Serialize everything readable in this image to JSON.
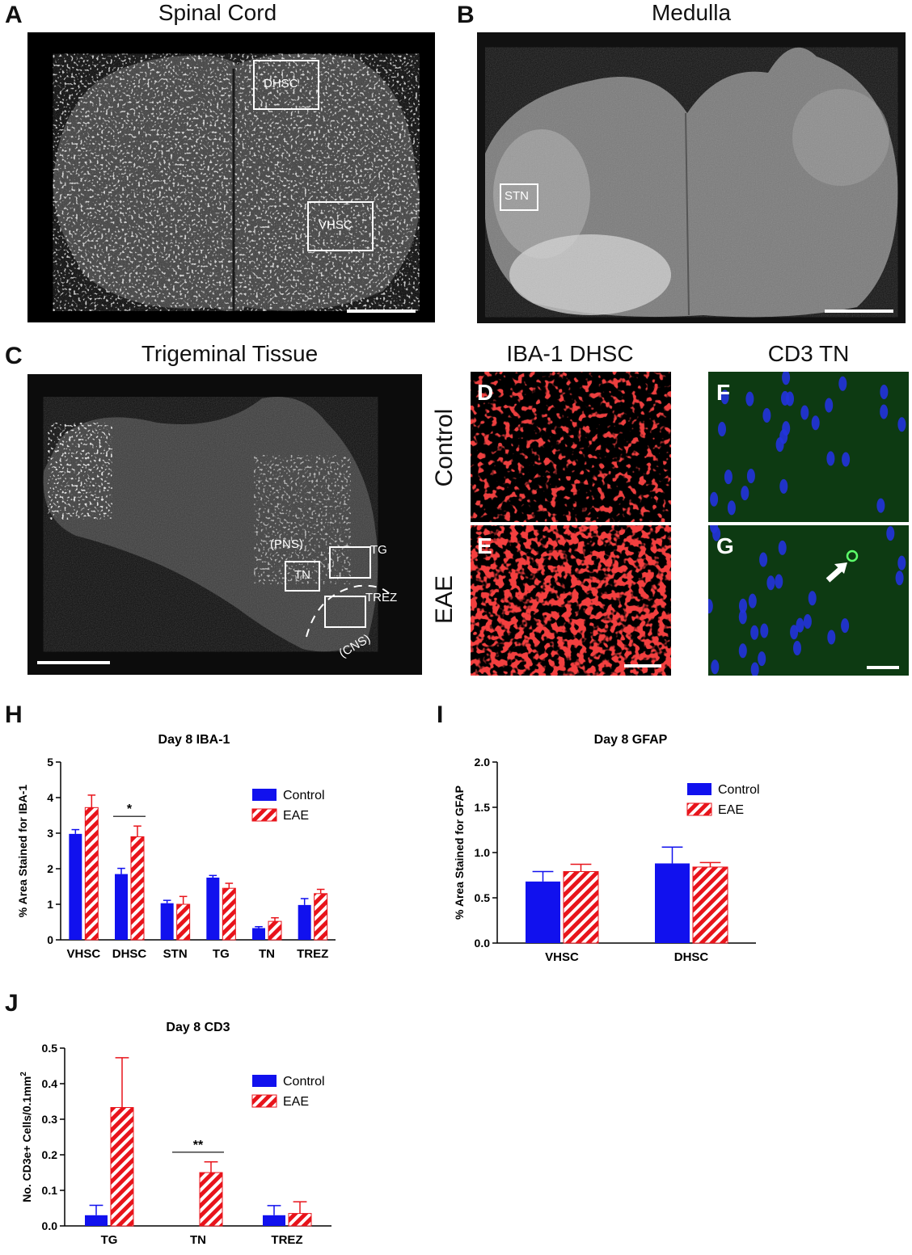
{
  "panels": {
    "A": {
      "letter": "A",
      "title": "Spinal Cord",
      "boxes": [
        "DHSC",
        "VHSC"
      ]
    },
    "B": {
      "letter": "B",
      "title": "Medulla",
      "boxes": [
        "STN"
      ]
    },
    "C": {
      "letter": "C",
      "title": "Trigeminal Tissue",
      "boxes": [
        "TN",
        "TG",
        "TREZ"
      ],
      "regions": [
        "(PNS)",
        "(CNS)"
      ]
    },
    "DE": {
      "title": "IBA-1 DHSC",
      "top_letter": "D",
      "bottom_letter": "E",
      "row_top": "Control",
      "row_bottom": "EAE"
    },
    "FG": {
      "title": "CD3 TN",
      "top_letter": "F",
      "bottom_letter": "G"
    }
  },
  "colors": {
    "control": "#1111ee",
    "eae": "#e8141b",
    "iba1_stain": "#d01010",
    "cd3_bg": "#0d3a12",
    "nuclei": "#2233dd"
  },
  "chart_data": [
    {
      "panel": "H",
      "type": "bar",
      "title": "Day 8 IBA-1",
      "xlabel": "",
      "ylabel": "% Area Stained for IBA-1",
      "ylim": [
        0,
        5
      ],
      "yticks": [
        "0",
        "1",
        "2",
        "3",
        "4",
        "5"
      ],
      "categories": [
        "VHSC",
        "DHSC",
        "STN",
        "TG",
        "TN",
        "TREZ"
      ],
      "series": [
        {
          "name": "Control",
          "values": [
            2.98,
            1.85,
            1.03,
            1.75,
            0.33,
            0.98
          ],
          "errors": [
            0.12,
            0.16,
            0.08,
            0.06,
            0.04,
            0.18
          ]
        },
        {
          "name": "EAE",
          "values": [
            3.72,
            2.9,
            1.0,
            1.45,
            0.52,
            1.3
          ],
          "errors": [
            0.35,
            0.3,
            0.22,
            0.14,
            0.1,
            0.12
          ]
        }
      ],
      "significance": [
        {
          "category": "DHSC",
          "label": "*"
        }
      ],
      "legend": "top-right"
    },
    {
      "panel": "I",
      "type": "bar",
      "title": "Day 8 GFAP",
      "xlabel": "",
      "ylabel": "% Area Stained for GFAP",
      "ylim": [
        0,
        2
      ],
      "yticks": [
        "0.0",
        "0.5",
        "1.0",
        "1.5",
        "2.0"
      ],
      "categories": [
        "VHSC",
        "DHSC"
      ],
      "series": [
        {
          "name": "Control",
          "values": [
            0.68,
            0.88
          ],
          "errors": [
            0.11,
            0.18
          ]
        },
        {
          "name": "EAE",
          "values": [
            0.79,
            0.84
          ],
          "errors": [
            0.08,
            0.05
          ]
        }
      ],
      "significance": [],
      "legend": "top-right"
    },
    {
      "panel": "J",
      "type": "bar",
      "title": "Day 8 CD3",
      "xlabel": "",
      "ylabel": "No. CD3e+ Cells/0.1mm",
      "ylabel_sup": "2",
      "ylim": [
        0,
        0.5
      ],
      "yticks": [
        "0.0",
        "0.1",
        "0.2",
        "0.3",
        "0.4",
        "0.5"
      ],
      "categories": [
        "TG",
        "TN",
        "TREZ"
      ],
      "series": [
        {
          "name": "Control",
          "values": [
            0.03,
            0.0,
            0.03
          ],
          "errors": [
            0.028,
            0.0,
            0.027
          ]
        },
        {
          "name": "EAE",
          "values": [
            0.333,
            0.15,
            0.035
          ],
          "errors": [
            0.14,
            0.03,
            0.033
          ]
        }
      ],
      "significance": [
        {
          "category": "TN",
          "label": "**"
        }
      ],
      "legend": "top-right"
    }
  ]
}
